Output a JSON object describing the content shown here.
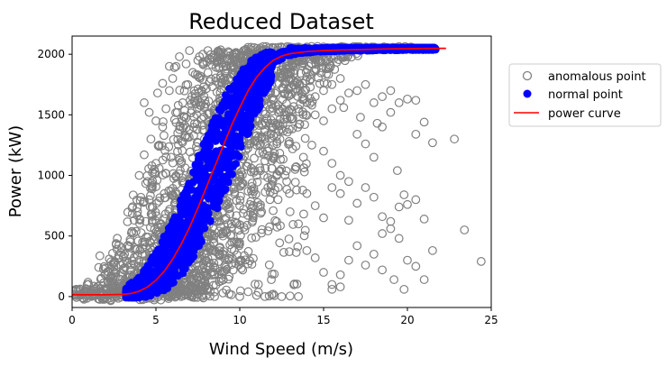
{
  "chart_data": {
    "type": "scatter",
    "title": "Reduced Dataset",
    "xlabel": "Wind Speed (m/s)",
    "ylabel": "Power (kW)",
    "xlim": [
      0,
      25
    ],
    "ylim": [
      -90,
      2150
    ],
    "xticks": [
      0,
      5,
      10,
      15,
      20,
      25
    ],
    "yticks": [
      0,
      500,
      1000,
      1500,
      2000
    ],
    "legend_position": "outside-right",
    "grid": false,
    "colors": {
      "anomalous": "#808080",
      "normal": "#0000ff",
      "curve": "#ff0000"
    },
    "series": [
      {
        "name": "anomalous point",
        "kind": "hollow-markers",
        "points": [
          [
            0.5,
            10
          ],
          [
            1.2,
            20
          ],
          [
            1.8,
            5
          ],
          [
            2.5,
            25
          ],
          [
            3.0,
            15
          ],
          [
            3.4,
            40
          ],
          [
            3.8,
            120
          ],
          [
            4.0,
            300
          ],
          [
            4.2,
            450
          ],
          [
            4.4,
            620
          ],
          [
            4.6,
            800
          ],
          [
            4.8,
            950
          ],
          [
            5.0,
            1100
          ],
          [
            5.2,
            1250
          ],
          [
            5.4,
            1400
          ],
          [
            5.6,
            1550
          ],
          [
            5.8,
            1700
          ],
          [
            6.0,
            1800
          ],
          [
            6.2,
            1900
          ],
          [
            6.4,
            1980
          ],
          [
            5.5,
            850
          ],
          [
            5.9,
            1150
          ],
          [
            6.3,
            1350
          ],
          [
            6.6,
            1600
          ],
          [
            6.9,
            1750
          ],
          [
            7.2,
            1850
          ],
          [
            7.5,
            1950
          ],
          [
            7.8,
            2000
          ],
          [
            8.1,
            2030
          ],
          [
            5.3,
            40
          ],
          [
            5.8,
            60
          ],
          [
            6.4,
            100
          ],
          [
            7.0,
            150
          ],
          [
            7.5,
            220
          ],
          [
            8.0,
            300
          ],
          [
            8.5,
            380
          ],
          [
            9.0,
            500
          ],
          [
            9.5,
            600
          ],
          [
            10.0,
            750
          ],
          [
            10.5,
            870
          ],
          [
            11.0,
            1000
          ],
          [
            11.5,
            1120
          ],
          [
            12.0,
            1250
          ],
          [
            12.5,
            1380
          ],
          [
            13.0,
            1480
          ],
          [
            13.5,
            1550
          ],
          [
            14.0,
            1600
          ],
          [
            14.5,
            1650
          ],
          [
            15.0,
            1700
          ],
          [
            15.5,
            1750
          ],
          [
            16.0,
            1800
          ],
          [
            6.5,
            0
          ],
          [
            7.0,
            5
          ],
          [
            7.5,
            20
          ],
          [
            8.0,
            10
          ],
          [
            8.5,
            0
          ],
          [
            9.0,
            30
          ],
          [
            9.5,
            15
          ],
          [
            10.0,
            0
          ],
          [
            10.5,
            40
          ],
          [
            11.0,
            10
          ],
          [
            11.5,
            0
          ],
          [
            12.0,
            20
          ],
          [
            12.5,
            0
          ],
          [
            13.0,
            5
          ],
          [
            13.5,
            0
          ],
          [
            8.5,
            650
          ],
          [
            9.0,
            800
          ],
          [
            9.5,
            900
          ],
          [
            10.0,
            1000
          ],
          [
            10.5,
            1100
          ],
          [
            11.0,
            1250
          ],
          [
            11.5,
            1300
          ],
          [
            12.0,
            1400
          ],
          [
            8.8,
            400
          ],
          [
            9.3,
            300
          ],
          [
            9.8,
            450
          ],
          [
            10.3,
            550
          ],
          [
            10.8,
            650
          ],
          [
            11.3,
            700
          ],
          [
            11.8,
            800
          ],
          [
            12.3,
            900
          ],
          [
            12.8,
            950
          ],
          [
            13.3,
            1050
          ],
          [
            13.8,
            1150
          ],
          [
            14.3,
            1250
          ],
          [
            9.5,
            1650
          ],
          [
            10.0,
            1800
          ],
          [
            10.5,
            1900
          ],
          [
            11.0,
            1980
          ],
          [
            11.5,
            2040
          ],
          [
            12.0,
            2050
          ],
          [
            12.5,
            2055
          ],
          [
            13.0,
            2060
          ],
          [
            13.5,
            2060
          ],
          [
            14.0,
            2060
          ],
          [
            15.0,
            2060
          ],
          [
            16.0,
            2060
          ],
          [
            17.0,
            2060
          ],
          [
            18.0,
            2060
          ],
          [
            14.5,
            1500
          ],
          [
            15.0,
            1450
          ],
          [
            15.5,
            1550
          ],
          [
            16.0,
            1620
          ],
          [
            16.5,
            1680
          ],
          [
            17.0,
            1700
          ],
          [
            17.5,
            1750
          ],
          [
            18.0,
            1600
          ],
          [
            18.5,
            1650
          ],
          [
            19.0,
            1700
          ],
          [
            15.0,
            1200
          ],
          [
            15.5,
            1100
          ],
          [
            16.0,
            1000
          ],
          [
            16.5,
            950
          ],
          [
            17.0,
            1340
          ],
          [
            17.5,
            1260
          ],
          [
            18.0,
            1150
          ],
          [
            18.5,
            1400
          ],
          [
            19.0,
            1520
          ],
          [
            19.5,
            1600
          ],
          [
            20.0,
            1630
          ],
          [
            20.5,
            1620
          ],
          [
            21.0,
            1440
          ],
          [
            21.5,
            1270
          ],
          [
            13.0,
            700
          ],
          [
            13.5,
            600
          ],
          [
            14.0,
            850
          ],
          [
            14.5,
            750
          ],
          [
            15.0,
            650
          ],
          [
            15.5,
            900
          ],
          [
            16.0,
            850
          ],
          [
            16.5,
            630
          ],
          [
            17.0,
            770
          ],
          [
            17.5,
            900
          ],
          [
            18.0,
            820
          ],
          [
            18.5,
            660
          ],
          [
            19.0,
            620
          ],
          [
            19.5,
            740
          ],
          [
            20.0,
            760
          ],
          [
            20.5,
            800
          ],
          [
            21.0,
            640
          ],
          [
            21.5,
            380
          ],
          [
            14.0,
            380
          ],
          [
            14.5,
            320
          ],
          [
            15.0,
            200
          ],
          [
            15.5,
            100
          ],
          [
            16.0,
            180
          ],
          [
            16.5,
            300
          ],
          [
            17.0,
            420
          ],
          [
            17.5,
            260
          ],
          [
            18.0,
            350
          ],
          [
            18.5,
            520
          ],
          [
            19.0,
            560
          ],
          [
            19.5,
            480
          ],
          [
            20.0,
            300
          ],
          [
            20.5,
            250
          ],
          [
            21.0,
            140
          ],
          [
            15.5,
            60
          ],
          [
            16.0,
            80
          ],
          [
            18.5,
            220
          ],
          [
            19.2,
            140
          ],
          [
            19.8,
            60
          ],
          [
            22.8,
            1300
          ],
          [
            23.4,
            550
          ],
          [
            24.4,
            290
          ],
          [
            20.5,
            1340
          ],
          [
            19.4,
            1040
          ],
          [
            18.2,
            1430
          ],
          [
            17.2,
            1480
          ],
          [
            16.2,
            1560
          ],
          [
            19.8,
            840
          ],
          [
            7.0,
            2030
          ],
          [
            7.6,
            1980
          ],
          [
            8.2,
            1960
          ],
          [
            8.8,
            2010
          ],
          [
            5.8,
            1900
          ],
          [
            6.1,
            1890
          ],
          [
            6.8,
            1920
          ],
          [
            4.3,
            1600
          ],
          [
            4.6,
            1520
          ],
          [
            5.0,
            1450
          ],
          [
            4.0,
            1000
          ],
          [
            4.3,
            1170
          ],
          [
            4.7,
            1300
          ],
          [
            5.1,
            1680
          ],
          [
            5.4,
            1760
          ],
          [
            3.9,
            700
          ],
          [
            4.1,
            820
          ],
          [
            4.5,
            950
          ],
          [
            4.9,
            1050
          ]
        ]
      },
      {
        "name": "normal point",
        "kind": "filled-band",
        "center": [
          [
            3.0,
            5
          ],
          [
            3.5,
            15
          ],
          [
            4.0,
            40
          ],
          [
            4.5,
            80
          ],
          [
            5.0,
            140
          ],
          [
            5.5,
            220
          ],
          [
            6.0,
            320
          ],
          [
            6.5,
            440
          ],
          [
            7.0,
            580
          ],
          [
            7.5,
            740
          ],
          [
            8.0,
            900
          ],
          [
            8.5,
            1070
          ],
          [
            9.0,
            1240
          ],
          [
            9.5,
            1410
          ],
          [
            10.0,
            1560
          ],
          [
            10.5,
            1700
          ],
          [
            11.0,
            1810
          ],
          [
            11.5,
            1900
          ],
          [
            12.0,
            1960
          ],
          [
            12.5,
            1995
          ],
          [
            13.0,
            2015
          ],
          [
            14.0,
            2030
          ],
          [
            15.0,
            2038
          ],
          [
            16.0,
            2042
          ],
          [
            17.0,
            2044
          ],
          [
            18.0,
            2046
          ],
          [
            19.0,
            2048
          ],
          [
            20.0,
            2049
          ],
          [
            21.0,
            2050
          ],
          [
            21.7,
            2050
          ]
        ],
        "halfwidth_ms": 1.2
      },
      {
        "name": "power curve",
        "kind": "line",
        "points": [
          [
            0.0,
            15
          ],
          [
            1.0,
            15
          ],
          [
            2.0,
            15
          ],
          [
            3.0,
            18
          ],
          [
            3.5,
            25
          ],
          [
            4.0,
            45
          ],
          [
            4.5,
            80
          ],
          [
            5.0,
            135
          ],
          [
            5.5,
            210
          ],
          [
            6.0,
            310
          ],
          [
            6.5,
            430
          ],
          [
            7.0,
            570
          ],
          [
            7.5,
            730
          ],
          [
            8.0,
            900
          ],
          [
            8.5,
            1070
          ],
          [
            9.0,
            1240
          ],
          [
            9.5,
            1410
          ],
          [
            10.0,
            1560
          ],
          [
            10.5,
            1700
          ],
          [
            11.0,
            1810
          ],
          [
            11.5,
            1890
          ],
          [
            12.0,
            1950
          ],
          [
            12.5,
            1985
          ],
          [
            13.0,
            2005
          ],
          [
            14.0,
            2022
          ],
          [
            15.0,
            2030
          ],
          [
            16.0,
            2035
          ],
          [
            17.0,
            2038
          ],
          [
            18.0,
            2041
          ],
          [
            19.0,
            2044
          ],
          [
            20.0,
            2046
          ],
          [
            21.0,
            2048
          ],
          [
            22.0,
            2049
          ],
          [
            22.3,
            2049
          ]
        ]
      }
    ]
  }
}
